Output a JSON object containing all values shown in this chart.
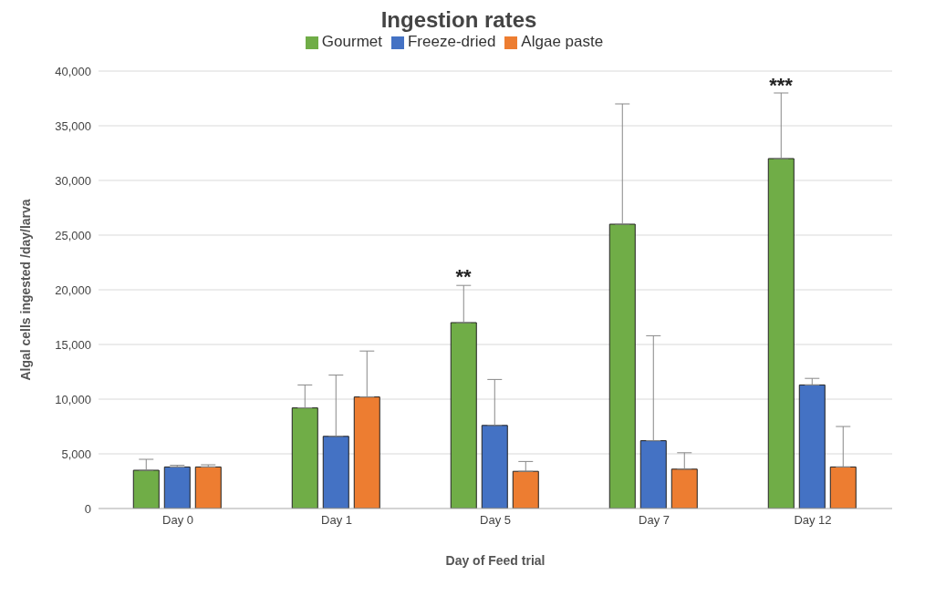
{
  "chart_data": {
    "type": "bar",
    "title": "Ingestion rates",
    "xlabel": "Day of Feed trial",
    "ylabel": "Algal cells ingested /day/larva",
    "categories": [
      "Day 0",
      "Day 1",
      "Day 5",
      "Day 7",
      "Day 12"
    ],
    "series": [
      {
        "name": "Gourmet",
        "color": "#70ad47",
        "values": [
          3500,
          9200,
          17000,
          26000,
          32000
        ],
        "errors": [
          [
            3500,
            4500
          ],
          [
            9200,
            11300
          ],
          [
            17000,
            20400
          ],
          [
            26000,
            37000
          ],
          [
            32000,
            38000
          ]
        ]
      },
      {
        "name": "Freeze-dried",
        "color": "#4472c4",
        "values": [
          3800,
          6600,
          7600,
          6200,
          11300
        ],
        "errors": [
          [
            3800,
            3950
          ],
          [
            6600,
            12200
          ],
          [
            7600,
            11800
          ],
          [
            6200,
            15800
          ],
          [
            11300,
            11900
          ]
        ]
      },
      {
        "name": "Algae paste",
        "color": "#ed7d31",
        "values": [
          3800,
          10200,
          3400,
          3600,
          3800
        ],
        "errors": [
          [
            3800,
            4000
          ],
          [
            10200,
            14400
          ],
          [
            3400,
            4300
          ],
          [
            3600,
            5100
          ],
          [
            3800,
            7500
          ]
        ]
      }
    ],
    "ylim": [
      0,
      40000
    ],
    "yticks": [
      {
        "value": 0,
        "label": "0"
      },
      {
        "value": 5000,
        "label": "5,000"
      },
      {
        "value": 10000,
        "label": "10,000"
      },
      {
        "value": 15000,
        "label": "15,000"
      },
      {
        "value": 20000,
        "label": "20,000"
      },
      {
        "value": 25000,
        "label": "25,000"
      },
      {
        "value": 30000,
        "label": "30,000"
      },
      {
        "value": 35000,
        "label": "35,000"
      },
      {
        "value": 40000,
        "label": "40,000"
      }
    ],
    "grid": "y",
    "legend": "top",
    "annotations": [
      "**",
      "***"
    ]
  }
}
